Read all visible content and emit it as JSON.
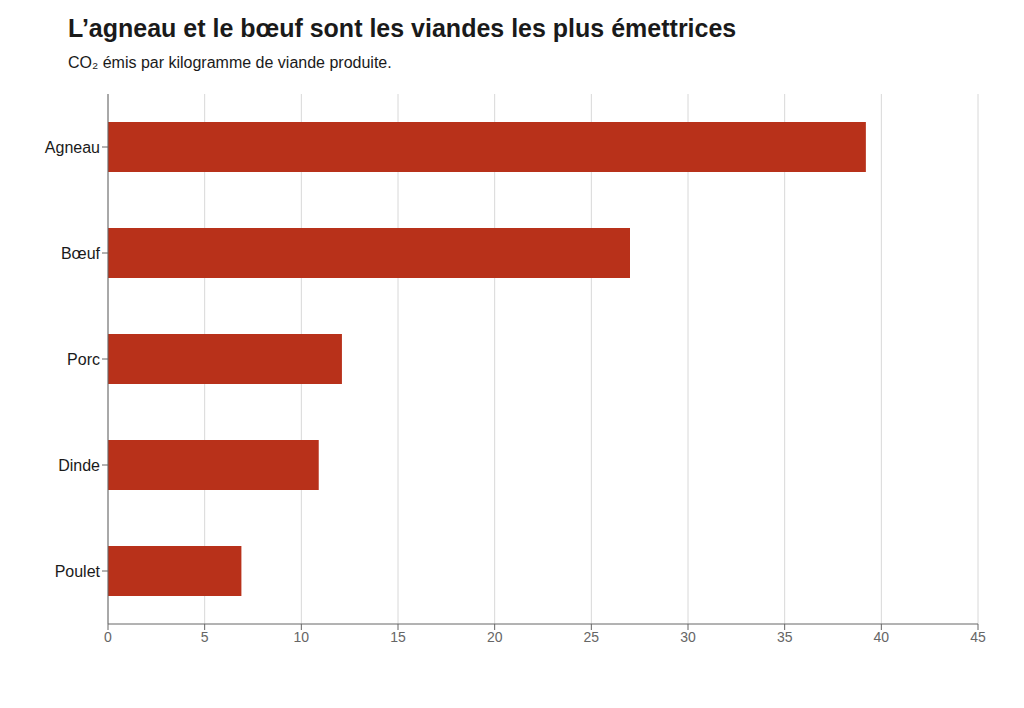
{
  "chart_data": {
    "type": "bar",
    "orientation": "horizontal",
    "title": "L’agneau et le bœuf sont les viandes les plus émettrices",
    "subtitle": "CO₂ émis par kilogramme de viande produite.",
    "categories": [
      "Agneau",
      "Bœuf",
      "Porc",
      "Dinde",
      "Poulet"
    ],
    "values": [
      39.2,
      27.0,
      12.1,
      10.9,
      6.9
    ],
    "color": "#b8311a",
    "xlim": [
      0,
      45
    ],
    "xticks": [
      0,
      5,
      10,
      15,
      20,
      25,
      30,
      35,
      40,
      45
    ],
    "grid": true
  }
}
